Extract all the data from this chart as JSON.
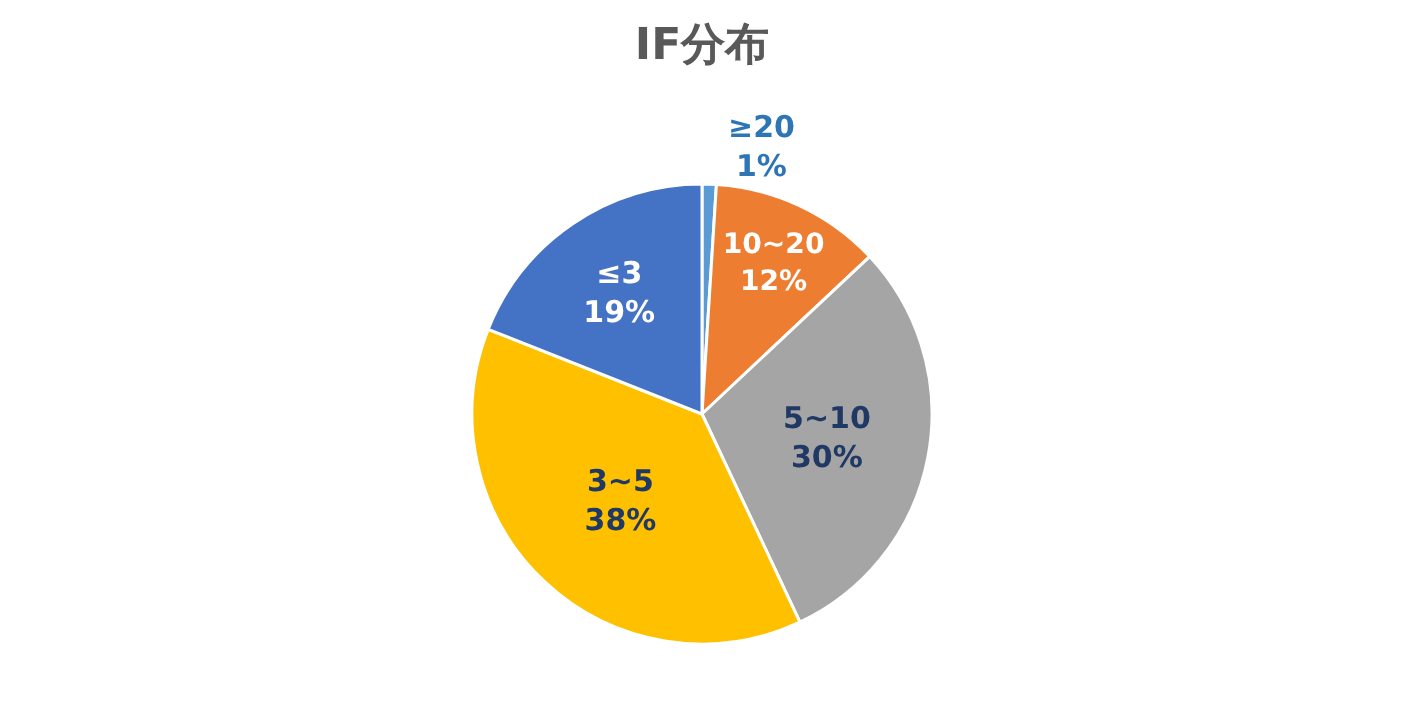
{
  "chart_data": {
    "type": "pie",
    "title": "IF分布",
    "categories": [
      "≥20",
      "10~20",
      "5~10",
      "3~5",
      "≤3"
    ],
    "values": [
      1,
      12,
      30,
      38,
      19
    ],
    "value_labels": [
      "1%",
      "12%",
      "30%",
      "38%",
      "19%"
    ],
    "colors": [
      "#5b9bd5",
      "#ed7d31",
      "#a5a5a5",
      "#ffc000",
      "#4472c4"
    ],
    "legend": false
  }
}
